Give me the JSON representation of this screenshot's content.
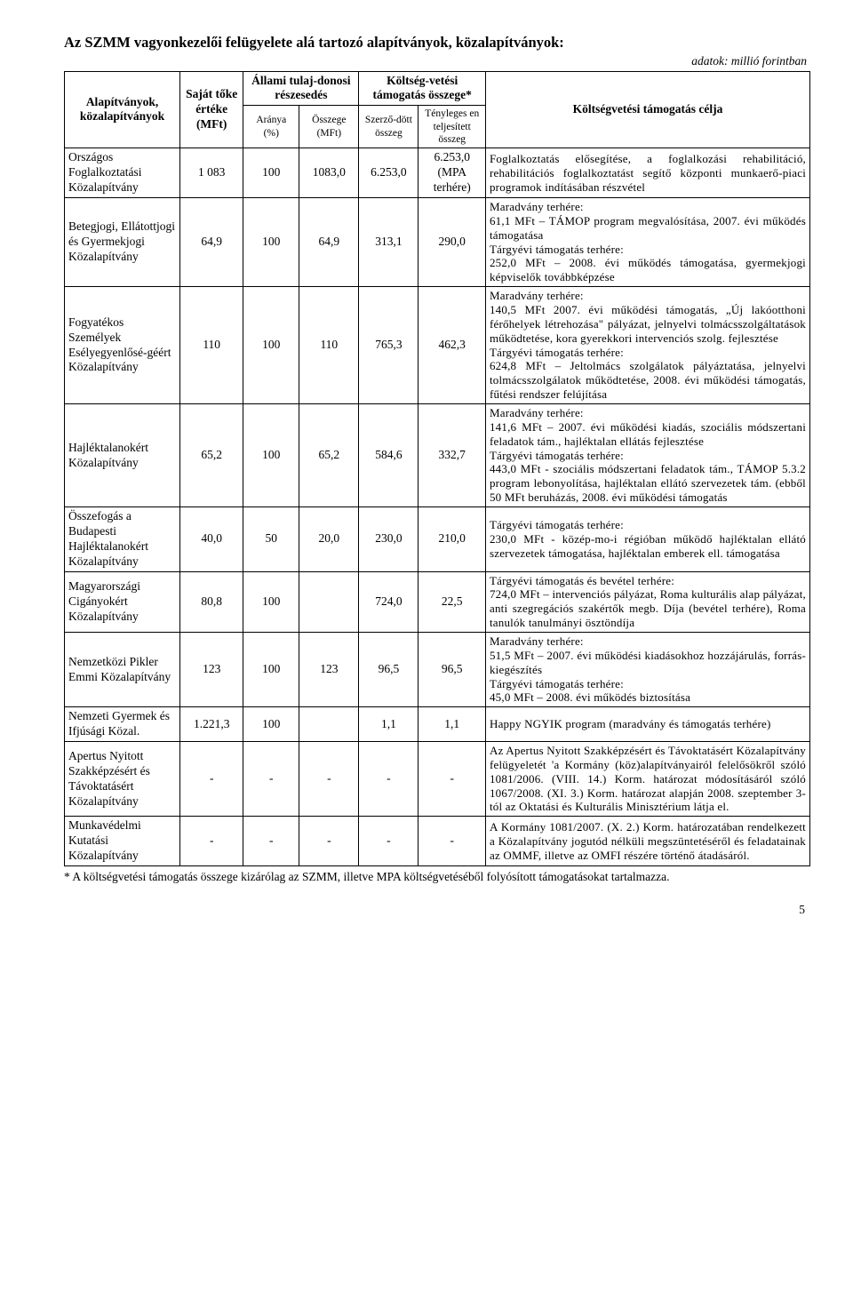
{
  "title": "Az SZMM vagyonkezelői felügyelete alá tartozó alapítványok, közalapítványok:",
  "subnote": "adatok: millió forintban",
  "colwidths": [
    "15.5%",
    "8.5%",
    "7.5%",
    "8%",
    "8%",
    "9%",
    "43.5%"
  ],
  "headers": {
    "c1": "Alapítványok, közalapítványok",
    "c2": "Saját tőke értéke (MFt)",
    "c3_group": "Állami tulaj-donosi részesedés",
    "c3a": "Aránya (%)",
    "c3b": "Összege (MFt)",
    "c4_group": "Költség-vetési támogatás összege*",
    "c4a": "Szerző-dött összeg",
    "c4b": "Tényleges en teljesített összeg",
    "c5": "Költségvetési támogatás célja"
  },
  "rows": [
    {
      "name": "Országos Foglalkoztatási Közalapítvány",
      "toke": "1 083",
      "arany": "100",
      "osszeg": "1083,0",
      "szerz": "6.253,0",
      "teny": "6.253,0 (MPA terhére)",
      "cel": "Foglalkoztatás elősegítése, a foglalkozási rehabilitáció, rehabilitációs foglalkoztatást segítő központi munkaerő-piaci programok indításában részvétel"
    },
    {
      "name": "Betegjogi, Ellátottjogi és Gyermekjogi Közalapítvány",
      "toke": "64,9",
      "arany": "100",
      "osszeg": "64,9",
      "szerz": "313,1",
      "teny": "290,0",
      "cel": "Maradvány terhére:\n61,1 MFt – TÁMOP program megvalósítása, 2007. évi működés támogatása\nTárgyévi támogatás terhére:\n252,0 MFt – 2008. évi működés támogatása, gyermekjogi képviselők továbbképzése"
    },
    {
      "name": "Fogyatékos Személyek Esélyegyenlősé-géért Közalapítvány",
      "toke": "110",
      "arany": "100",
      "osszeg": "110",
      "szerz": "765,3",
      "teny": "462,3",
      "cel": "Maradvány terhére:\n140,5 MFt 2007. évi működési támogatás, „Új lakóotthoni férőhelyek létrehozása\" pályázat, jelnyelvi tolmácsszolgáltatások működtetése, kora gyerekkori intervenciós szolg. fejlesztése\nTárgyévi támogatás terhére:\n624,8 MFt – Jeltolmács szolgálatok pályáztatása, jelnyelvi tolmácsszolgálatok működtetése, 2008. évi működési támogatás, fűtési rendszer felújítása"
    },
    {
      "name": "Hajléktalanokért Közalapítvány",
      "toke": "65,2",
      "arany": "100",
      "osszeg": "65,2",
      "szerz": "584,6",
      "teny": "332,7",
      "cel": "Maradvány terhére:\n141,6 MFt – 2007. évi működési kiadás, szociális módszertani feladatok tám., hajléktalan ellátás fejlesztése\nTárgyévi támogatás terhére:\n443,0 MFt - szociális módszertani feladatok tám., TÁMOP 5.3.2 program lebonyolítása, hajléktalan ellátó szervezetek tám. (ebből 50 MFt beruházás, 2008. évi működési támogatás"
    },
    {
      "name": "Összefogás a Budapesti Hajléktalanokért Közalapítvány",
      "toke": "40,0",
      "arany": "50",
      "osszeg": "20,0",
      "szerz": "230,0",
      "teny": "210,0",
      "cel": "Tárgyévi támogatás terhére:\n230,0 MFt - közép-mo-i régióban működő hajléktalan ellátó szervezetek támogatása, hajléktalan emberek ell. támogatása"
    },
    {
      "name": "Magyarországi Cigányokért Közalapítvány",
      "toke": "80,8",
      "arany": "100",
      "osszeg": "",
      "szerz": "724,0",
      "teny": "22,5",
      "cel": "Tárgyévi támogatás és bevétel terhére:\n724,0 MFt – intervenciós pályázat, Roma kulturális alap pályázat, anti szegregációs szakértők megb. Díja (bevétel terhére), Roma tanulók tanulmányi ösztöndíja"
    },
    {
      "name": "Nemzetközi Pikler Emmi Közalapítvány",
      "toke": "123",
      "arany": "100",
      "osszeg": "123",
      "szerz": "96,5",
      "teny": "96,5",
      "cel": "Maradvány terhére:\n51,5 MFt – 2007. évi működési kiadásokhoz hozzájárulás, forrás-kiegészítés\nTárgyévi támogatás terhére:\n45,0 MFt – 2008. évi működés biztosítása"
    },
    {
      "name": "Nemzeti Gyermek és Ifjúsági Közal.",
      "toke": "1.221,3",
      "arany": "100",
      "osszeg": "",
      "szerz": "1,1",
      "teny": "1,1",
      "cel": "Happy NGYIK program (maradvány és támogatás terhére)"
    },
    {
      "name": "Apertus Nyitott Szakképzésért és Távoktatásért Közalapítvány",
      "toke": "-",
      "arany": "-",
      "osszeg": "-",
      "szerz": "-",
      "teny": "-",
      "cel": "Az Apertus Nyitott Szakképzésért és Távoktatásért Közalapítvány felügyeletét 'a Kormány (köz)alapítványairól felelősökről szóló 1081/2006. (VIII. 14.) Korm. határozat módosításáról szóló 1067/2008. (XI. 3.) Korm. határozat alapján 2008. szeptember 3-tól az Oktatási és Kulturális Minisztérium látja el."
    },
    {
      "name": "Munkavédelmi Kutatási Közalapítvány",
      "toke": "-",
      "arany": "-",
      "osszeg": "-",
      "szerz": "-",
      "teny": "-",
      "cel": "A Kormány 1081/2007. (X. 2.) Korm. határozatában rendelkezett a Közalapítvány jogutód nélküli megszüntetéséről és feladatainak az OMMF, illetve az OMFI részére történő átadásáról."
    }
  ],
  "footnote": "* A költségvetési támogatás összege kizárólag az SZMM, illetve MPA költségvetéséből folyósított támogatásokat tartalmazza.",
  "pagenum": "5"
}
